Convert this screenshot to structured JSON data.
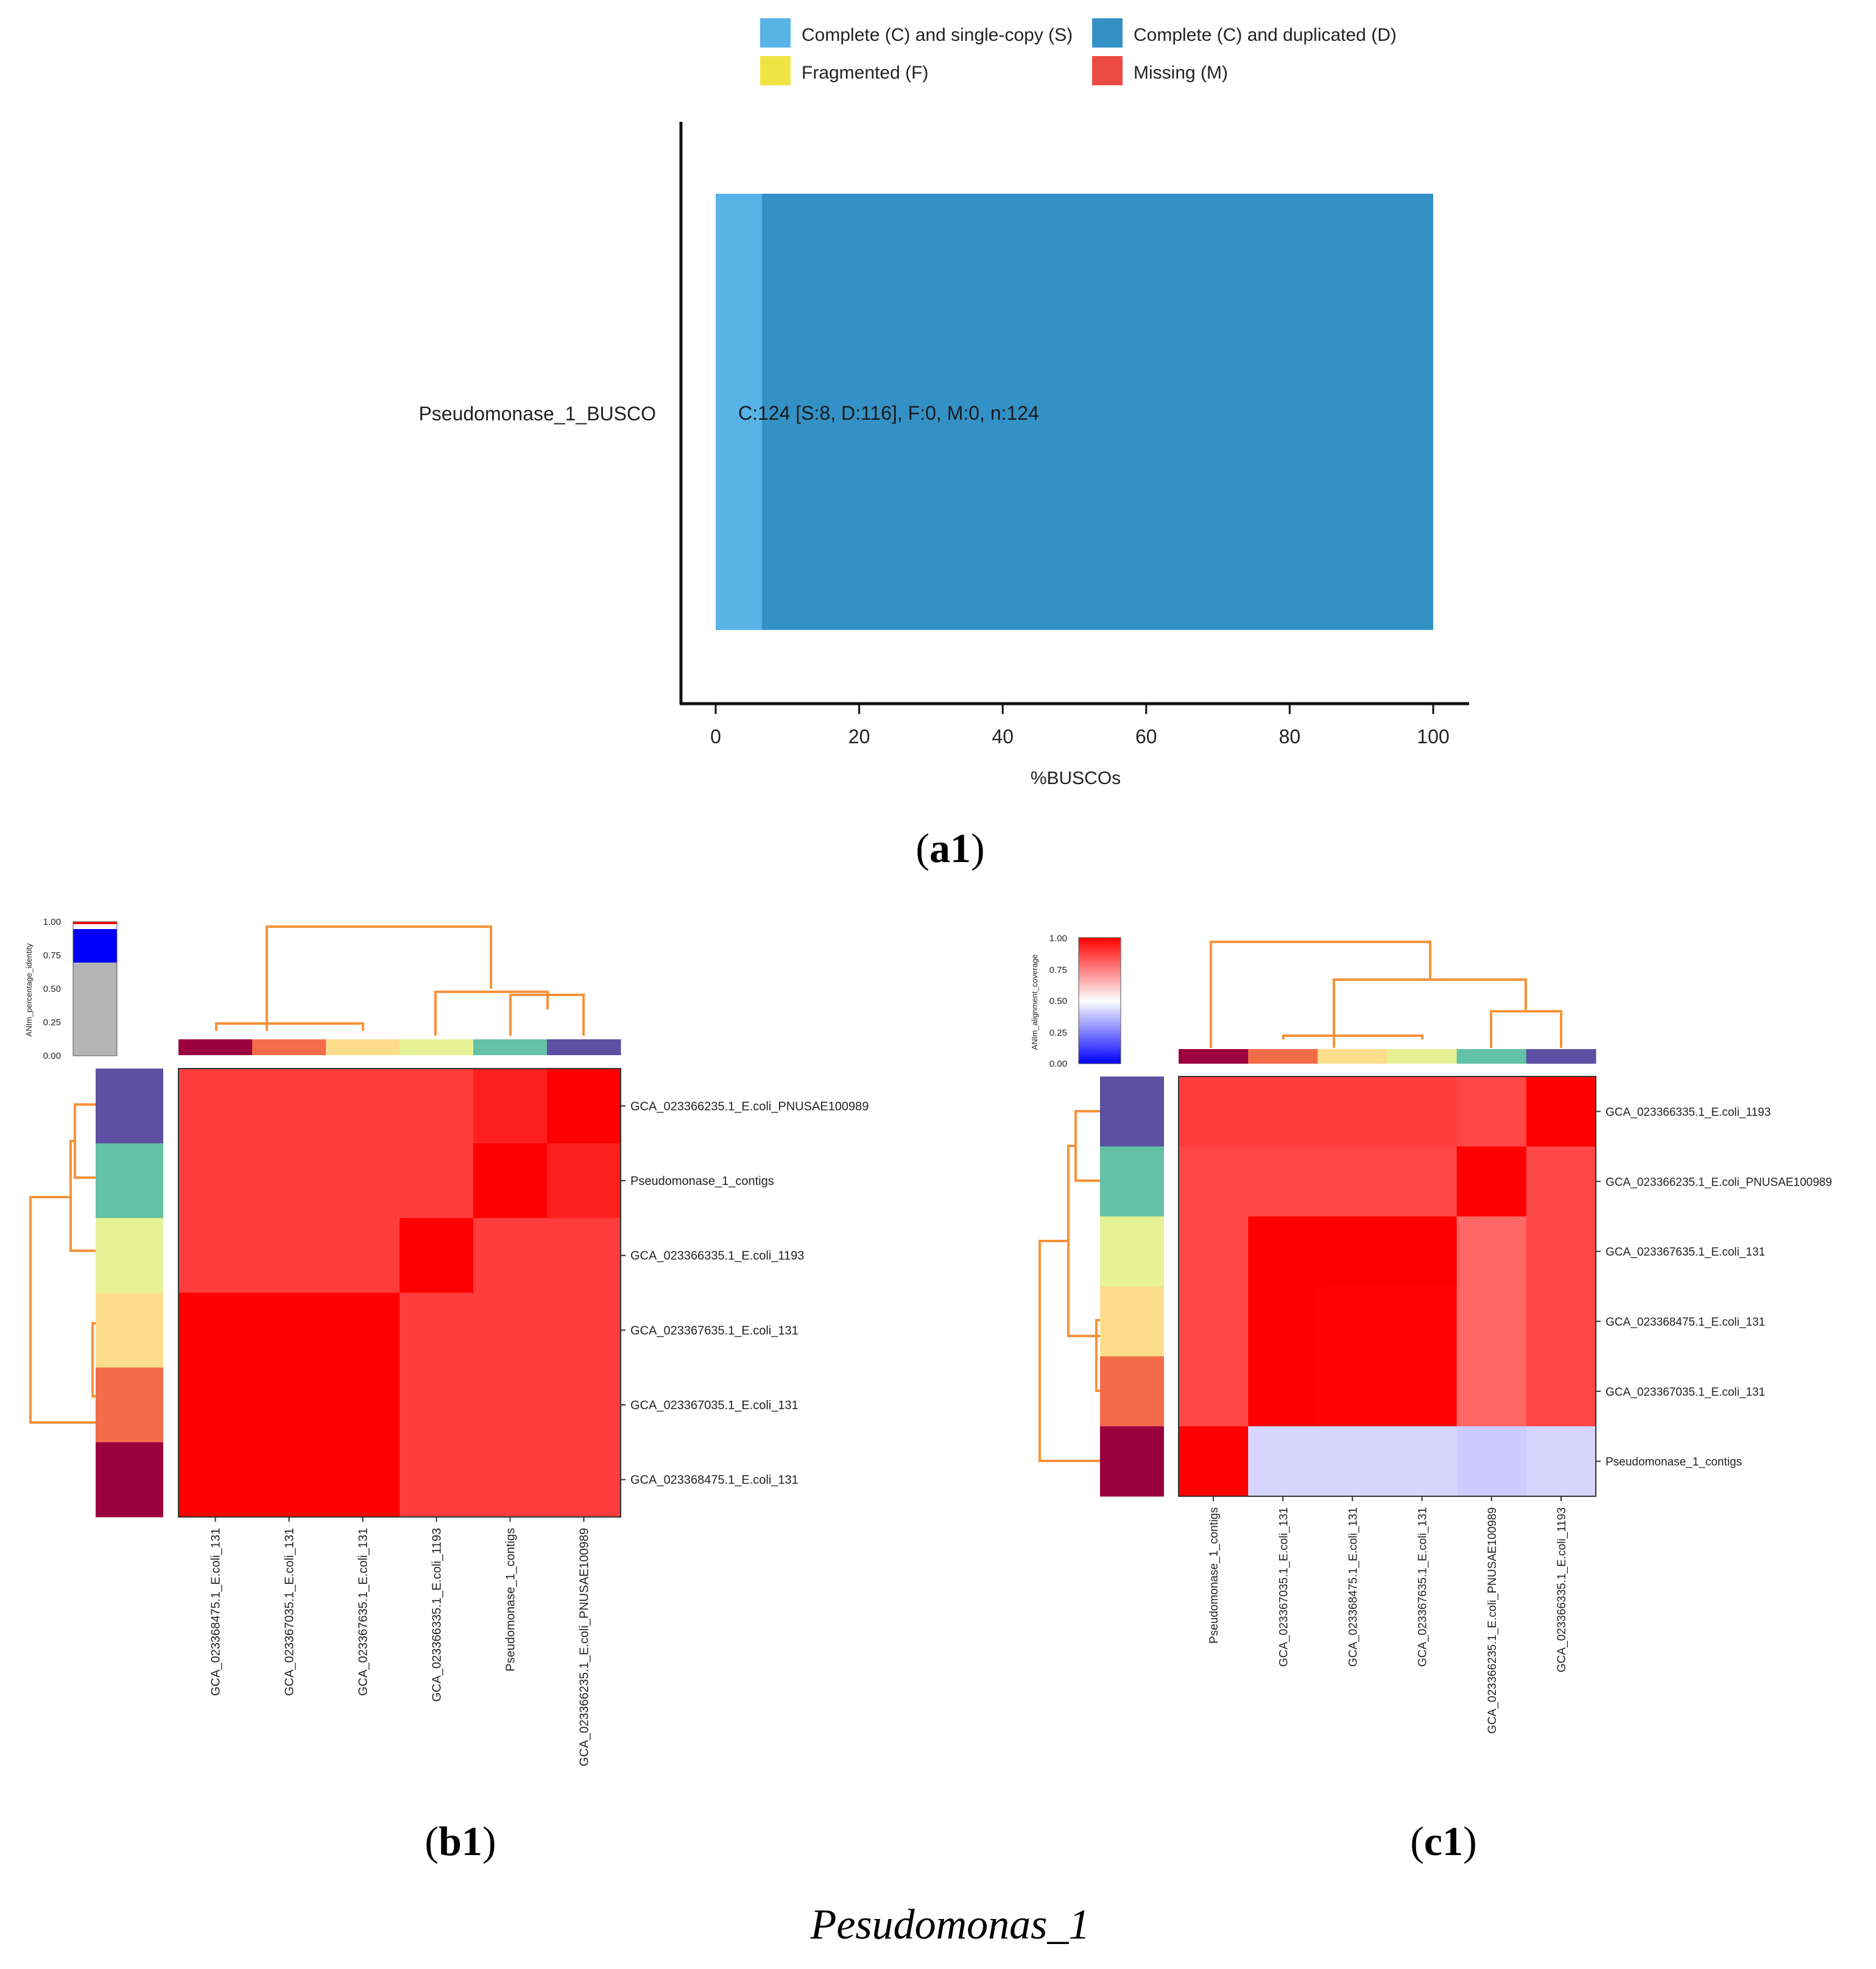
{
  "figure_title": "Pesudomonas_1",
  "colors": {
    "single_copy": "#58b3e6",
    "duplicated": "#3491c6",
    "fragmented": "#f0e442",
    "missing": "#ec4b44",
    "dendrogram": "#f7923a",
    "cluster_colors": [
      "#9b003f",
      "#f26c4a",
      "#fcdd8c",
      "#e6f296",
      "#63c1a5",
      "#5d50a2"
    ]
  },
  "panels": {
    "a1": {
      "label": "a1"
    },
    "b1": {
      "label": "b1"
    },
    "c1": {
      "label": "c1"
    }
  },
  "chart_data": [
    {
      "id": "a1",
      "type": "bar",
      "orientation": "horizontal",
      "stacked": true,
      "categories": [
        "Pseudomonase_1_BUSCO"
      ],
      "series": [
        {
          "name": "Complete (C) and single-copy (S)",
          "values": [
            6.45
          ]
        },
        {
          "name": "Complete (C) and duplicated (D)",
          "values": [
            93.55
          ]
        },
        {
          "name": "Fragmented (F)",
          "values": [
            0
          ]
        },
        {
          "name": "Missing (M)",
          "values": [
            0
          ]
        }
      ],
      "bar_annotation": "C:124 [S:8, D:116], F:0, M:0, n:124",
      "legend": [
        "Complete (C) and single-copy (S)",
        "Complete (C) and duplicated (D)",
        "Fragmented (F)",
        "Missing (M)"
      ],
      "xlabel": "%BUSCOs",
      "xlim": [
        0,
        100
      ],
      "xticks": [
        0,
        20,
        40,
        60,
        80,
        100
      ],
      "xtick_labels": [
        "0",
        "20",
        "40",
        "60",
        "80",
        "100"
      ]
    },
    {
      "id": "b1",
      "type": "heatmap",
      "colorbar_label": "ANIm_percentage_identity",
      "colorbar_ticks": [
        "1.00",
        "0.75",
        "0.50",
        "0.25",
        "0.00"
      ],
      "row_labels": [
        "GCA_023366235.1_E.coli_PNUSAE100989",
        "Pseudomonase_1_contigs",
        "GCA_023366335.1_E.coli_1193",
        "GCA_023367635.1_E.coli_131",
        "GCA_023367035.1_E.coli_131",
        "GCA_023368475.1_E.coli_131"
      ],
      "col_labels": [
        "GCA_023368475.1_E.coli_131",
        "GCA_023367035.1_E.coli_131",
        "GCA_023367635.1_E.coli_131",
        "GCA_023366335.1_E.coli_1193",
        "Pseudomonase_1_contigs",
        "GCA_023366235.1_E.coli_PNUSAE100989"
      ],
      "values": [
        [
          0.94,
          0.94,
          0.94,
          0.94,
          0.97,
          1.0
        ],
        [
          0.94,
          0.94,
          0.94,
          0.94,
          1.0,
          0.97
        ],
        [
          0.94,
          0.94,
          0.94,
          1.0,
          0.94,
          0.94
        ],
        [
          1.0,
          1.0,
          1.0,
          0.94,
          0.94,
          0.94
        ],
        [
          1.0,
          1.0,
          1.0,
          0.94,
          0.94,
          0.94
        ],
        [
          1.0,
          1.0,
          1.0,
          0.94,
          0.94,
          0.94
        ]
      ],
      "row_cluster_colors": [
        5,
        4,
        3,
        2,
        1,
        0
      ],
      "col_cluster_colors": [
        0,
        1,
        2,
        3,
        4,
        5
      ]
    },
    {
      "id": "c1",
      "type": "heatmap",
      "colorbar_label": "ANIm_alignment_coverage",
      "colorbar_ticks": [
        "1.00",
        "0.75",
        "0.50",
        "0.25",
        "0.00"
      ],
      "row_labels": [
        "GCA_023366335.1_E.coli_1193",
        "GCA_023366235.1_E.coli_PNUSAE100989",
        "GCA_023367635.1_E.coli_131",
        "GCA_023368475.1_E.coli_131",
        "GCA_023367035.1_E.coli_131",
        "Pseudomonase_1_contigs"
      ],
      "col_labels": [
        "Pseudomonase_1_contigs",
        "GCA_023367035.1_E.coli_131",
        "GCA_023368475.1_E.coli_131",
        "GCA_023367635.1_E.coli_131",
        "GCA_023366235.1_E.coli_PNUSAE100989",
        "GCA_023366335.1_E.coli_1193"
      ],
      "values": [
        [
          0.88,
          0.88,
          0.88,
          0.88,
          0.86,
          1.0
        ],
        [
          0.86,
          0.86,
          0.86,
          0.86,
          1.0,
          0.86
        ],
        [
          0.86,
          1.0,
          1.0,
          1.0,
          0.8,
          0.86
        ],
        [
          0.86,
          1.0,
          0.99,
          0.99,
          0.8,
          0.86
        ],
        [
          0.86,
          1.0,
          0.99,
          0.99,
          0.8,
          0.86
        ],
        [
          1.0,
          0.42,
          0.42,
          0.42,
          0.4,
          0.42
        ]
      ],
      "row_cluster_colors": [
        5,
        4,
        3,
        2,
        1,
        0
      ],
      "col_cluster_colors": [
        0,
        1,
        2,
        3,
        4,
        5
      ]
    }
  ]
}
